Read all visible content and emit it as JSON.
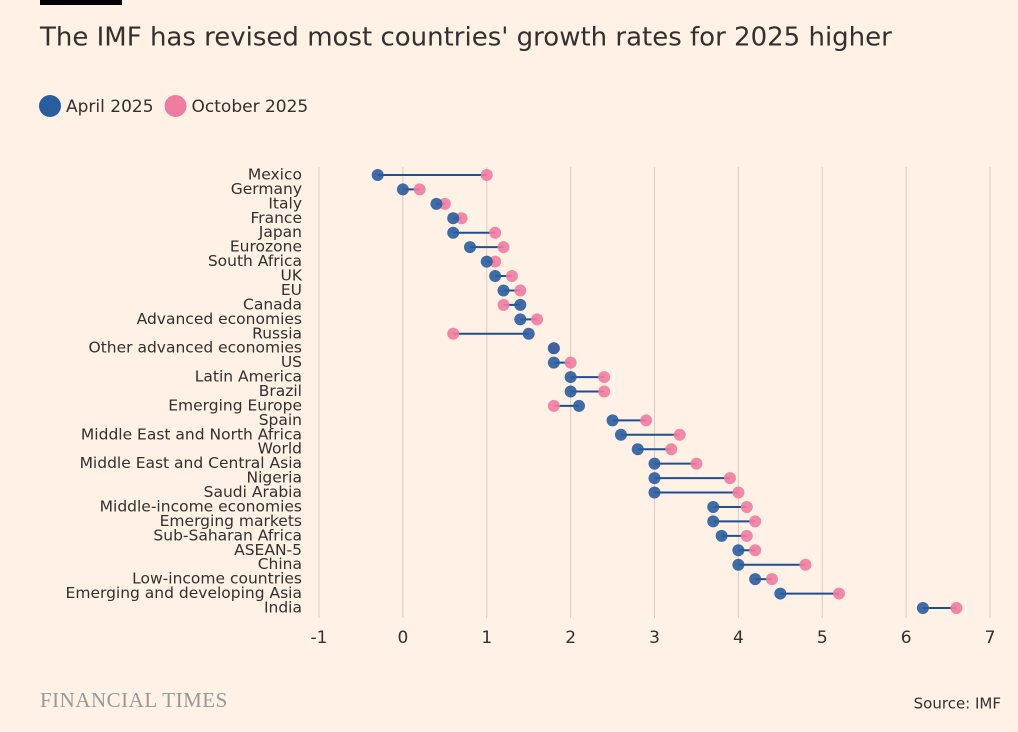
{
  "chart_data": {
    "type": "dumbbell",
    "title": "The IMF has revised most countries' growth rates for 2025 higher",
    "categories": [
      "Mexico",
      "Germany",
      "Italy",
      "France",
      "Japan",
      "Eurozone",
      "South Africa",
      "UK",
      "EU",
      "Canada",
      "Advanced economies",
      "Russia",
      "Other advanced economies",
      "US",
      "Latin America",
      "Brazil",
      "Emerging Europe",
      "Spain",
      "Middle East and North Africa",
      "World",
      "Middle East and Central Asia",
      "Nigeria",
      "Saudi Arabia",
      "Middle-income economies",
      "Emerging markets",
      "Sub-Saharan Africa",
      "ASEAN-5",
      "China",
      "Low-income countries",
      "Emerging and developing Asia",
      "India"
    ],
    "series": [
      {
        "name": "April 2025",
        "color": "#2a5d9f",
        "values": [
          -0.3,
          0.0,
          0.4,
          0.6,
          0.6,
          0.8,
          1.0,
          1.1,
          1.2,
          1.4,
          1.4,
          1.5,
          1.8,
          1.8,
          2.0,
          2.0,
          2.1,
          2.5,
          2.6,
          2.8,
          3.0,
          3.0,
          3.0,
          3.7,
          3.7,
          3.8,
          4.0,
          4.0,
          4.2,
          4.5,
          6.2
        ]
      },
      {
        "name": "October 2025",
        "color": "#f07ca0",
        "values": [
          1.0,
          0.2,
          0.5,
          0.7,
          1.1,
          1.2,
          1.1,
          1.3,
          1.4,
          1.2,
          1.6,
          0.6,
          1.8,
          2.0,
          2.4,
          2.4,
          1.8,
          2.9,
          3.3,
          3.2,
          3.5,
          3.9,
          4.0,
          4.1,
          4.2,
          4.1,
          4.2,
          4.8,
          4.4,
          5.2,
          6.6
        ]
      }
    ],
    "xlim": [
      -1,
      7
    ],
    "xticks": [
      -1,
      0,
      1,
      2,
      3,
      4,
      5,
      6,
      7
    ],
    "grid": true,
    "connector_color": "#1d4f91",
    "brand": "FINANCIAL TIMES",
    "source": "Source: IMF"
  }
}
